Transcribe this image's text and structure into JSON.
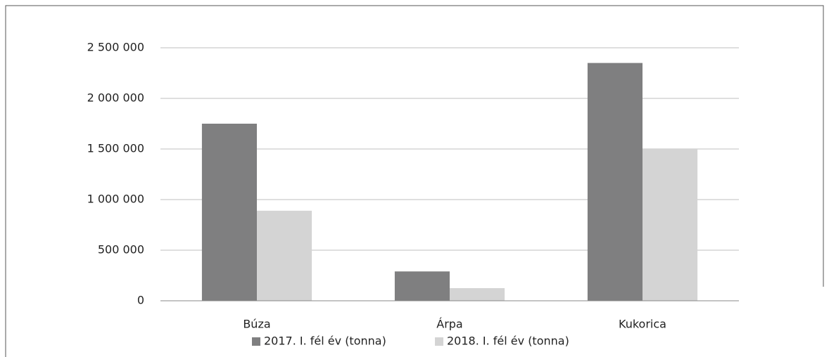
{
  "chart_data": {
    "type": "bar",
    "categories": [
      "Búza",
      "Árpa",
      "Kukorica"
    ],
    "series": [
      {
        "name": "2017. I. fél év (tonna)",
        "color": "#7f7f80",
        "values": [
          1750000,
          290000,
          2350000
        ]
      },
      {
        "name": "2018. I. fél év (tonna)",
        "color": "#d4d4d4",
        "values": [
          890000,
          125000,
          1500000
        ]
      }
    ],
    "ylim": [
      0,
      2500000
    ],
    "yticks": [
      0,
      {
        "value": 500000,
        "label": "500 000"
      },
      {
        "value": 1000000,
        "label": "1 000 000"
      },
      {
        "value": 1500000,
        "label": "1 500 000"
      },
      {
        "value": 2000000,
        "label": "2 000 000"
      },
      {
        "value": 2500000,
        "label": "2 500 000"
      }
    ],
    "grid": true,
    "legend": "bottom"
  }
}
